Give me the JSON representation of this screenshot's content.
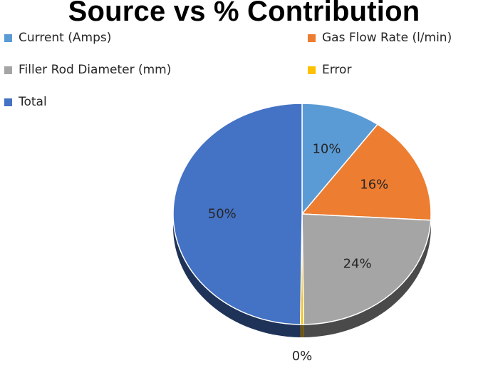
{
  "chart_data": {
    "type": "pie",
    "title": "Source vs % Contribution",
    "categories": [
      "Current (Amps)",
      "Gas Flow Rate (l/min)",
      "Filler Rod Diameter (mm)",
      "Error",
      "Total"
    ],
    "values": [
      10,
      16,
      24,
      0,
      50
    ],
    "labels": [
      "10%",
      "16%",
      "24%",
      "0%",
      "50%"
    ],
    "colors": [
      "#5b9bd5",
      "#ed7d31",
      "#a5a5a5",
      "#ffc000",
      "#4472c4"
    ],
    "legend_position": "top",
    "style": "3d"
  }
}
